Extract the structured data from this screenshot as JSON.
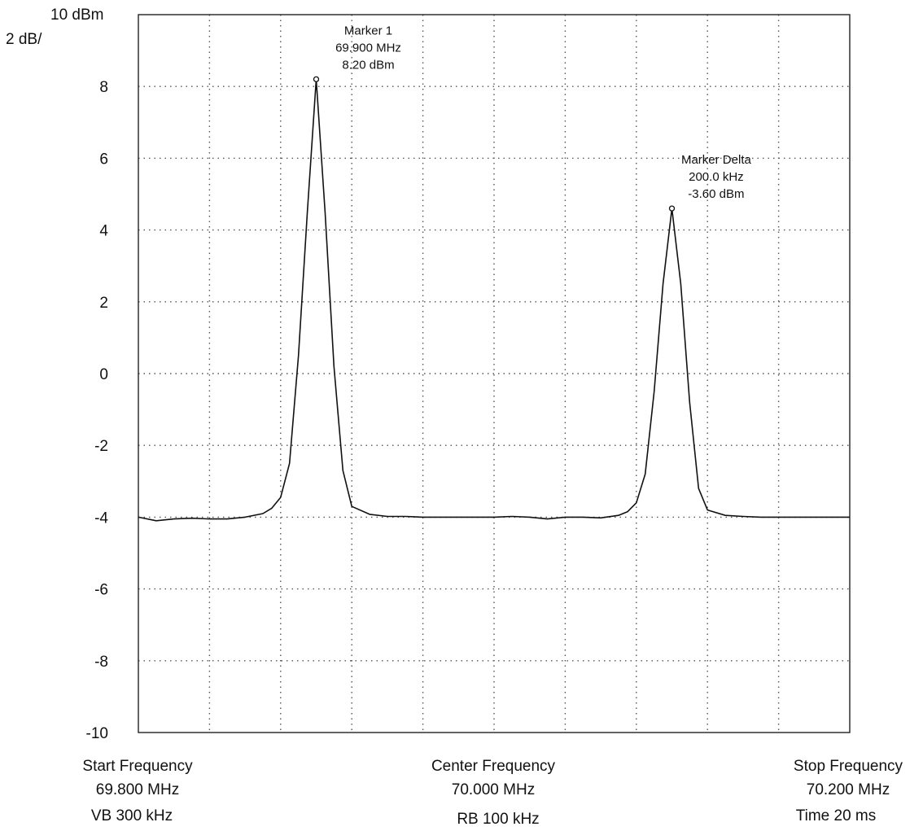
{
  "chart_data": {
    "type": "line",
    "ref_level_label": "10 dBm",
    "scale_label": "2 dB/",
    "ylim": [
      -10,
      10
    ],
    "y_ticks": [
      8,
      6,
      4,
      2,
      0,
      -2,
      -4,
      -6,
      -8,
      -10
    ],
    "x_unit": "MHz",
    "xlim": [
      69.8,
      70.2
    ],
    "grid": true,
    "series": [
      {
        "x": [
          69.8,
          69.81,
          69.82,
          69.83,
          69.84,
          69.85,
          69.86,
          69.87,
          69.875,
          69.88,
          69.885,
          69.89,
          69.895,
          69.9,
          69.905,
          69.91,
          69.915,
          69.92,
          69.93,
          69.94,
          69.95,
          69.96,
          69.97,
          69.98,
          69.99,
          70.0,
          70.01,
          70.02,
          70.03,
          70.04,
          70.05,
          70.06,
          70.07,
          70.075,
          70.08,
          70.085,
          70.09,
          70.095,
          70.1,
          70.105,
          70.11,
          70.115,
          70.12,
          70.13,
          70.14,
          70.15,
          70.16,
          70.17,
          70.18,
          70.19,
          70.2
        ],
        "y": [
          -4.0,
          -4.1,
          -4.05,
          -4.03,
          -4.05,
          -4.05,
          -4.0,
          -3.9,
          -3.75,
          -3.45,
          -2.5,
          0.5,
          4.5,
          8.2,
          4.5,
          0.2,
          -2.7,
          -3.7,
          -3.92,
          -3.98,
          -3.98,
          -4.0,
          -4.0,
          -4.0,
          -4.0,
          -4.0,
          -3.98,
          -4.0,
          -4.05,
          -4.0,
          -4.0,
          -4.02,
          -3.95,
          -3.85,
          -3.6,
          -2.8,
          -0.5,
          2.5,
          4.6,
          2.5,
          -0.8,
          -3.2,
          -3.8,
          -3.95,
          -3.98,
          -4.0,
          -4.0,
          -4.0,
          -4.0,
          -4.0,
          -4.0
        ]
      }
    ],
    "markers": [
      {
        "name": "Marker 1",
        "freq_text": "69.900 MHz",
        "level_text": "8.20 dBm",
        "x": 69.9,
        "y": 8.2
      },
      {
        "name": "Marker Delta",
        "freq_text": "200.0 kHz",
        "level_text": "-3.60 dBm",
        "x": 70.1,
        "y": 4.6
      }
    ],
    "footer": {
      "start_label": "Start Frequency",
      "start_value": "69.800 MHz",
      "vb": "VB 300 kHz",
      "center_label": "Center Frequency",
      "center_value": "70.000 MHz",
      "rb": "RB 100 kHz",
      "stop_label": "Stop Frequency",
      "stop_value": "70.200 MHz",
      "time": "Time 20 ms"
    },
    "colors": {
      "trace": "#111111",
      "grid": "#555555",
      "frame": "#222222"
    }
  }
}
